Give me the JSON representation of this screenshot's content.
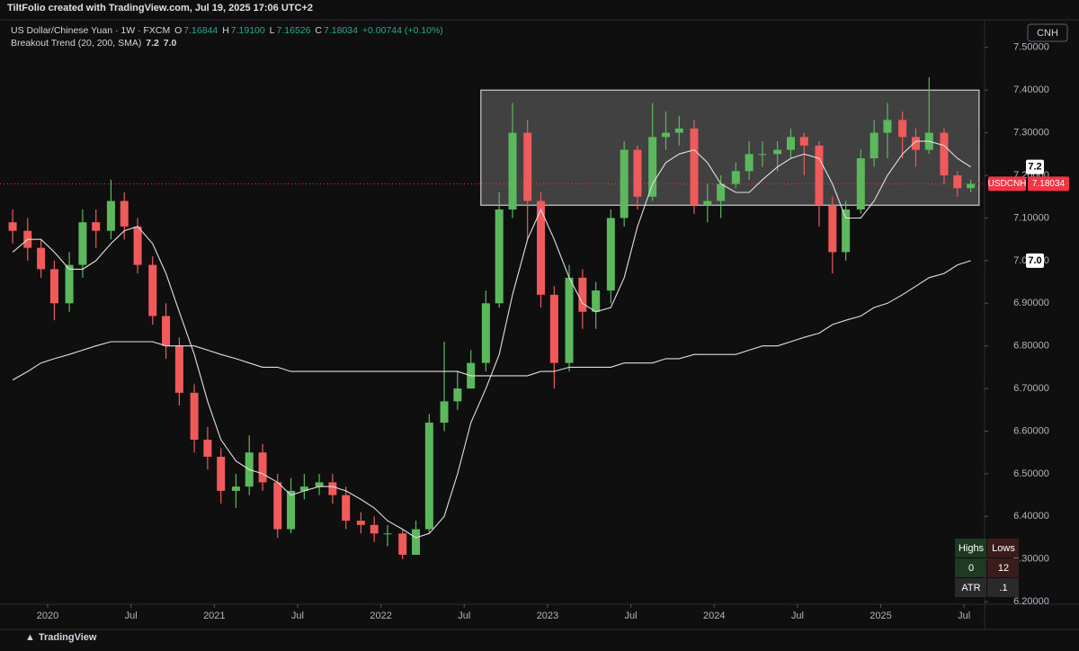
{
  "header": {
    "credit": "TiltFolio created with TradingView.com, Jul 19, 2025 17:06 UTC+2"
  },
  "footer": {
    "brand": "TradingView"
  },
  "chart_data": {
    "type": "candlestick",
    "legend": {
      "symbol": "US Dollar/Chinese Yuan · 1W · FXCM",
      "ohlc": [
        {
          "label": "O",
          "value": "7.16844"
        },
        {
          "label": "H",
          "value": "7.19100"
        },
        {
          "label": "L",
          "value": "7.16526"
        },
        {
          "label": "C",
          "value": "7.18034"
        }
      ],
      "change": "+0.00744 (+0.10%)"
    },
    "indicator": {
      "name": "Breakout Trend (20, 200, SMA)",
      "values": [
        "7.2",
        "7.0"
      ]
    },
    "currency": "CNH",
    "x": [
      2019.79,
      2019.88,
      2019.96,
      2020.04,
      2020.13,
      2020.21,
      2020.29,
      2020.38,
      2020.46,
      2020.54,
      2020.63,
      2020.71,
      2020.79,
      2020.88,
      2020.96,
      2021.04,
      2021.13,
      2021.21,
      2021.29,
      2021.38,
      2021.46,
      2021.54,
      2021.63,
      2021.71,
      2021.79,
      2021.88,
      2021.96,
      2022.04,
      2022.13,
      2022.21,
      2022.29,
      2022.38,
      2022.46,
      2022.54,
      2022.63,
      2022.71,
      2022.79,
      2022.88,
      2022.96,
      2023.04,
      2023.13,
      2023.21,
      2023.29,
      2023.38,
      2023.46,
      2023.54,
      2023.63,
      2023.71,
      2023.79,
      2023.88,
      2023.96,
      2024.04,
      2024.13,
      2024.21,
      2024.29,
      2024.38,
      2024.46,
      2024.54,
      2024.63,
      2024.71,
      2024.79,
      2024.88,
      2024.96,
      2025.04,
      2025.13,
      2025.21,
      2025.29,
      2025.38,
      2025.46,
      2025.54
    ],
    "open": [
      7.09,
      7.07,
      7.03,
      6.98,
      6.9,
      6.99,
      7.09,
      7.07,
      7.14,
      7.08,
      6.99,
      6.87,
      6.8,
      6.69,
      6.58,
      6.54,
      6.46,
      6.47,
      6.55,
      6.48,
      6.37,
      6.46,
      6.47,
      6.48,
      6.45,
      6.39,
      6.38,
      6.36,
      6.36,
      6.31,
      6.37,
      6.62,
      6.67,
      6.7,
      6.76,
      6.9,
      7.12,
      7.3,
      7.14,
      6.92,
      6.76,
      6.96,
      6.88,
      6.93,
      7.1,
      7.26,
      7.15,
      7.29,
      7.3,
      7.31,
      7.13,
      7.14,
      7.18,
      7.21,
      7.25,
      7.25,
      7.26,
      7.29,
      7.27,
      7.13,
      7.02,
      7.12,
      7.24,
      7.3,
      7.33,
      7.29,
      7.26,
      7.3,
      7.2,
      7.17
    ],
    "high": [
      7.12,
      7.1,
      7.05,
      7.0,
      7.02,
      7.12,
      7.12,
      7.19,
      7.16,
      7.1,
      7.01,
      6.9,
      6.82,
      6.71,
      6.61,
      6.56,
      6.5,
      6.59,
      6.57,
      6.5,
      6.49,
      6.5,
      6.5,
      6.5,
      6.47,
      6.41,
      6.4,
      6.38,
      6.37,
      6.39,
      6.64,
      6.81,
      6.74,
      6.79,
      6.93,
      7.16,
      7.37,
      7.33,
      7.16,
      6.94,
      6.99,
      6.98,
      6.95,
      7.12,
      7.28,
      7.27,
      7.37,
      7.35,
      7.34,
      7.33,
      7.18,
      7.2,
      7.23,
      7.28,
      7.28,
      7.28,
      7.31,
      7.3,
      7.28,
      7.15,
      7.14,
      7.26,
      7.33,
      7.37,
      7.35,
      7.31,
      7.43,
      7.31,
      7.21,
      7.19
    ],
    "low": [
      7.04,
      7.0,
      6.96,
      6.86,
      6.88,
      6.96,
      7.03,
      7.05,
      7.05,
      6.97,
      6.85,
      6.77,
      6.66,
      6.55,
      6.51,
      6.43,
      6.42,
      6.45,
      6.46,
      6.35,
      6.36,
      6.44,
      6.45,
      6.43,
      6.37,
      6.36,
      6.34,
      6.33,
      6.3,
      6.31,
      6.36,
      6.6,
      6.65,
      6.7,
      6.74,
      6.89,
      7.1,
      7.05,
      6.89,
      6.7,
      6.74,
      6.84,
      6.84,
      6.9,
      7.08,
      7.12,
      7.14,
      7.26,
      7.27,
      7.11,
      7.09,
      7.1,
      7.17,
      7.19,
      7.22,
      7.21,
      7.24,
      7.2,
      7.08,
      6.97,
      7.0,
      7.11,
      7.22,
      7.24,
      7.24,
      7.22,
      7.25,
      7.18,
      7.15,
      7.16
    ],
    "close": [
      7.07,
      7.03,
      6.98,
      6.9,
      6.99,
      7.09,
      7.07,
      7.14,
      7.08,
      6.99,
      6.87,
      6.8,
      6.69,
      6.58,
      6.54,
      6.46,
      6.47,
      6.55,
      6.48,
      6.37,
      6.46,
      6.47,
      6.48,
      6.45,
      6.39,
      6.38,
      6.36,
      6.36,
      6.31,
      6.37,
      6.62,
      6.67,
      6.7,
      6.76,
      6.9,
      7.12,
      7.3,
      7.14,
      6.92,
      6.76,
      6.96,
      6.88,
      6.93,
      7.1,
      7.26,
      7.15,
      7.29,
      7.3,
      7.31,
      7.13,
      7.14,
      7.18,
      7.21,
      7.25,
      7.25,
      7.26,
      7.29,
      7.27,
      7.13,
      7.02,
      7.12,
      7.24,
      7.3,
      7.33,
      7.29,
      7.26,
      7.3,
      7.2,
      7.17,
      7.18
    ],
    "up_color": "#5cb85c",
    "down_color": "#f05a5a",
    "overlays": [
      {
        "color": "#e0e0e0",
        "values": [
          7.02,
          7.05,
          7.05,
          7.02,
          6.98,
          6.98,
          7.0,
          7.04,
          7.07,
          7.08,
          7.04,
          6.97,
          6.88,
          6.78,
          6.67,
          6.58,
          6.53,
          6.51,
          6.5,
          6.48,
          6.45,
          6.46,
          6.47,
          6.47,
          6.46,
          6.44,
          6.42,
          6.39,
          6.37,
          6.35,
          6.36,
          6.4,
          6.5,
          6.62,
          6.7,
          6.78,
          6.92,
          7.05,
          7.12,
          7.05,
          6.96,
          6.9,
          6.88,
          6.89,
          6.96,
          7.08,
          7.18,
          7.23,
          7.25,
          7.26,
          7.23,
          7.18,
          7.16,
          7.16,
          7.19,
          7.22,
          7.24,
          7.25,
          7.24,
          7.18,
          7.1,
          7.1,
          7.14,
          7.2,
          7.25,
          7.28,
          7.28,
          7.27,
          7.24,
          7.22
        ]
      },
      {
        "color": "#e0e0e0",
        "values": [
          6.72,
          6.74,
          6.76,
          6.77,
          6.78,
          6.79,
          6.8,
          6.81,
          6.81,
          6.81,
          6.81,
          6.8,
          6.8,
          6.8,
          6.79,
          6.78,
          6.77,
          6.76,
          6.75,
          6.75,
          6.74,
          6.74,
          6.74,
          6.74,
          6.74,
          6.74,
          6.74,
          6.74,
          6.74,
          6.74,
          6.74,
          6.74,
          6.74,
          6.73,
          6.73,
          6.73,
          6.73,
          6.73,
          6.74,
          6.74,
          6.75,
          6.75,
          6.75,
          6.75,
          6.76,
          6.76,
          6.76,
          6.77,
          6.77,
          6.78,
          6.78,
          6.78,
          6.78,
          6.79,
          6.8,
          6.8,
          6.81,
          6.82,
          6.83,
          6.85,
          6.86,
          6.87,
          6.89,
          6.9,
          6.92,
          6.94,
          6.96,
          6.97,
          6.99,
          7.0
        ]
      }
    ],
    "box": {
      "x": [
        2022.6,
        2025.59
      ],
      "y": [
        7.13,
        7.4
      ],
      "color": "#4a4a4a"
    },
    "last_price": {
      "symbol": "USDCNH",
      "value": 7.18034,
      "color": "#f23645"
    },
    "xlim": [
      2019.714,
      2025.623
    ],
    "xticks": [
      2020,
      {
        "value": 2020.5,
        "label": "Jul"
      },
      2021,
      {
        "value": 2021.5,
        "label": "Jul"
      },
      2022,
      {
        "value": 2022.5,
        "label": "Jul"
      },
      2023,
      {
        "value": 2023.5,
        "label": "Jul"
      },
      2024,
      {
        "value": 2024.5,
        "label": "Jul"
      },
      2025,
      {
        "value": 2025.5,
        "label": "Jul"
      }
    ],
    "ylim": [
      6.194,
      7.565
    ],
    "yticks": [
      {
        "value": 6.2,
        "label": "6.20000"
      },
      {
        "value": 6.3,
        "label": "6.30000"
      },
      {
        "value": 6.4,
        "label": "6.40000"
      },
      {
        "value": 6.5,
        "label": "6.50000"
      },
      {
        "value": 6.6,
        "label": "6.60000"
      },
      {
        "value": 6.7,
        "label": "6.70000"
      },
      {
        "value": 6.8,
        "label": "6.80000"
      },
      {
        "value": 6.9,
        "label": "6.90000"
      },
      {
        "value": 7.0,
        "label": "7.00000"
      },
      {
        "value": 7.1,
        "label": "7.10000"
      },
      {
        "value": 7.2,
        "label": "7.20000"
      },
      {
        "value": 7.3,
        "label": "7.30000"
      },
      {
        "value": 7.4,
        "label": "7.40000"
      },
      {
        "value": 7.5,
        "label": "7.50000"
      }
    ],
    "table": {
      "header": [
        "Highs",
        "Lows"
      ],
      "rows": [
        [
          "0",
          "12"
        ],
        [
          "ATR",
          ".1"
        ]
      ]
    }
  }
}
